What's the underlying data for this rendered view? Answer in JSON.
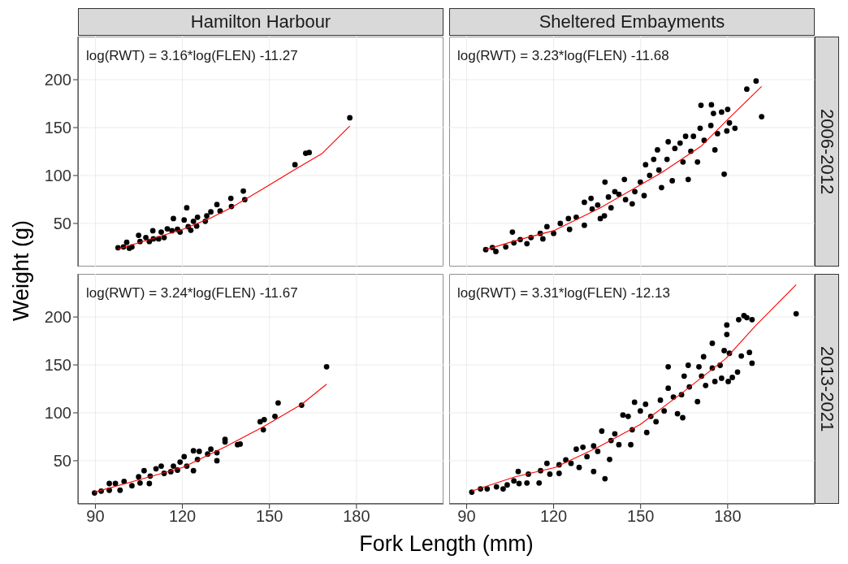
{
  "chart_data": [
    {
      "type": "scatter",
      "title": "Hamilton Harbour",
      "ylabel": "Weight (g)",
      "xlim": [
        84,
        210
      ],
      "ylim": [
        5,
        245
      ],
      "xticks": [
        90,
        120,
        150,
        180
      ],
      "yticks": [
        50,
        100,
        150,
        200
      ],
      "grid": true,
      "marker": "circle",
      "tick_labels": "y",
      "annotations": [
        "log(RWT) = 3.16*log(FLEN) -11.27"
      ],
      "series": [
        {
          "type": "scatter",
          "color": "#000000",
          "x": [
            97.8,
            99.7,
            100.8,
            101.7,
            102.6,
            104.9,
            105.4,
            107.4,
            108.6,
            109.8,
            110.0,
            111.8,
            112.7,
            113.7,
            114.8,
            116.4,
            116.9,
            118.3,
            119.2,
            120.6,
            121.5,
            122.0,
            122.9,
            123.8,
            124.9,
            125.2,
            127.9,
            128.4,
            129.8,
            131.9,
            133.0,
            136.7,
            136.9,
            141.0,
            141.5,
            158.8,
            162.5,
            163.7,
            177.7
          ],
          "values": [
            24.7,
            25.5,
            30.3,
            24.1,
            25.5,
            37.6,
            31.1,
            35.3,
            31.1,
            42.4,
            33.9,
            33.9,
            41.0,
            35.3,
            44.4,
            42.4,
            55.1,
            43.8,
            41.0,
            53.6,
            66.3,
            46.6,
            42.9,
            52.2,
            47.2,
            56.5,
            52.2,
            57.9,
            62.1,
            69.7,
            62.9,
            76.2,
            67.7,
            83.8,
            74.8,
            111.3,
            123.2,
            124.0,
            160.3
          ]
        },
        {
          "type": "line",
          "marker": "none",
          "color": "#ff0000",
          "x": [
            97.8,
            110.9,
            120.1,
            129.3,
            136.7,
            147.7,
            158.8,
            168.0,
            177.7
          ],
          "values": [
            23.2,
            35.3,
            43.8,
            55.1,
            66.3,
            86.0,
            106.3,
            122.6,
            151.6
          ]
        }
      ]
    },
    {
      "type": "scatter",
      "title": "Sheltered Embayments",
      "y2label": "2006-2012",
      "xlim": [
        84,
        210
      ],
      "ylim": [
        5,
        245
      ],
      "xticks": [
        90,
        120,
        150,
        180
      ],
      "yticks": [
        50,
        100,
        150,
        200
      ],
      "grid": true,
      "marker": "circle",
      "tick_labels": false,
      "annotations": [
        "log(RWT) = 3.23*log(FLEN) -11.68"
      ],
      "series": [
        {
          "type": "scatter",
          "color": "#000000",
          "x": [
            96.6,
            98.9,
            100.1,
            103.5,
            105.8,
            106.3,
            108.5,
            110.8,
            112.2,
            115.4,
            116.3,
            117.7,
            120.0,
            122.3,
            125.5,
            125.1,
            127.8,
            130.6,
            130.6,
            132.9,
            133.3,
            136.1,
            135.2,
            137.5,
            137.7,
            138.9,
            139.8,
            141.1,
            142.5,
            144.4,
            144.8,
            147.1,
            148.0,
            149.9,
            151.2,
            151.7,
            153.1,
            154.5,
            155.8,
            156.3,
            157.2,
            159.1,
            159.5,
            160.9,
            161.8,
            163.6,
            164.6,
            165.5,
            166.4,
            167.3,
            168.2,
            169.6,
            170.5,
            170.8,
            171.9,
            174.2,
            174.4,
            175.1,
            175.6,
            176.5,
            177.9,
            178.8,
            179.7,
            180.0,
            180.6,
            182.5,
            186.6,
            189.8,
            191.7
          ],
          "values": [
            22.7,
            24.9,
            20.7,
            25.5,
            41.0,
            29.7,
            33.1,
            28.9,
            35.3,
            39.6,
            33.9,
            46.6,
            39.6,
            50.0,
            43.8,
            55.1,
            56.5,
            48.1,
            72.1,
            76.2,
            65.1,
            55.1,
            69.1,
            57.9,
            93.1,
            77.6,
            66.3,
            83.2,
            80.4,
            95.9,
            74.8,
            70.5,
            83.2,
            93.1,
            79.0,
            111.3,
            100.1,
            116.9,
            126.8,
            105.7,
            87.4,
            116.9,
            135.2,
            94.5,
            128.2,
            133.8,
            114.1,
            140.9,
            95.9,
            125.4,
            140.9,
            114.1,
            149.3,
            173.3,
            136.7,
            152.2,
            173.8,
            164.8,
            126.8,
            143.7,
            166.2,
            101.4,
            146.5,
            169.0,
            154.9,
            149.3,
            190.1,
            198.6,
            161.4
          ]
        },
        {
          "type": "line",
          "marker": "none",
          "color": "#ff0000",
          "x": [
            96.6,
            108.1,
            120.0,
            136.1,
            157.2,
            171.0,
            180.2,
            191.7
          ],
          "values": [
            22.7,
            33.1,
            42.4,
            66.3,
            102.9,
            131.0,
            159.1,
            193.0
          ]
        }
      ]
    },
    {
      "type": "scatter",
      "xlabel": "Fork Length (mm)",
      "xlim": [
        84,
        210
      ],
      "ylim": [
        5,
        245
      ],
      "xticks": [
        90,
        120,
        150,
        180
      ],
      "yticks": [
        50,
        100,
        150,
        200
      ],
      "grid": true,
      "marker": "circle",
      "annotations": [
        "log(RWT) = 3.24*log(FLEN) -11.67"
      ],
      "series": [
        {
          "type": "scatter",
          "color": "#000000",
          "x": [
            89.7,
            92.0,
            94.8,
            94.8,
            96.9,
            98.5,
            99.9,
            102.6,
            104.9,
            105.4,
            106.8,
            108.6,
            108.9,
            110.9,
            113.7,
            112.7,
            116.0,
            116.9,
            118.3,
            119.2,
            120.6,
            121.5,
            123.8,
            123.8,
            125.2,
            125.8,
            128.7,
            129.8,
            131.9,
            131.9,
            134.7,
            134.7,
            139.0,
            139.9,
            146.8,
            148.2,
            147.9,
            151.9,
            153.0,
            161.1,
            169.7
          ],
          "values": [
            16.4,
            18.3,
            19.2,
            26.2,
            26.2,
            19.2,
            28.4,
            23.9,
            33.2,
            26.8,
            39.6,
            26.2,
            34.0,
            41.6,
            36.8,
            44.4,
            38.6,
            44.4,
            40.2,
            48.6,
            54.2,
            44.4,
            39.6,
            60.4,
            51.4,
            59.8,
            57.0,
            62.1,
            50.0,
            58.4,
            72.4,
            69.6,
            66.8,
            67.4,
            90.7,
            92.9,
            82.3,
            96.3,
            110.3,
            108.0,
            148.1
          ]
        },
        {
          "type": "line",
          "marker": "none",
          "color": "#ff0000",
          "x": [
            89.7,
            105.4,
            120.1,
            134.8,
            147.7,
            153.2,
            161.1,
            169.7
          ],
          "values": [
            17.2,
            30.4,
            43.0,
            64.6,
            85.1,
            94.9,
            108.9,
            129.9
          ]
        }
      ]
    },
    {
      "type": "scatter",
      "y2label": "2013-2021",
      "xlim": [
        84,
        210
      ],
      "ylim": [
        5,
        245
      ],
      "xticks": [
        90,
        120,
        150,
        180
      ],
      "yticks": [
        50,
        100,
        150,
        200
      ],
      "grid": true,
      "marker": "circle",
      "tick_labels": "x",
      "annotations": [
        "log(RWT) = 3.31*log(FLEN) -12.13"
      ],
      "series": [
        {
          "type": "scatter",
          "color": "#000000",
          "x": [
            91.8,
            94.8,
            97.1,
            100.3,
            102.6,
            104.0,
            106.3,
            107.8,
            108.1,
            110.8,
            111.3,
            115.0,
            115.5,
            117.7,
            118.7,
            121.9,
            121.9,
            124.2,
            126.0,
            128.8,
            127.8,
            130.1,
            131.5,
            133.8,
            133.8,
            135.2,
            136.6,
            137.7,
            139.3,
            139.8,
            141.1,
            142.5,
            143.9,
            145.7,
            146.6,
            147.1,
            147.9,
            149.9,
            151.7,
            152.1,
            153.5,
            155.3,
            156.8,
            158.1,
            159.5,
            159.5,
            161.3,
            162.7,
            164.1,
            164.5,
            165.0,
            166.4,
            166.8,
            169.6,
            170.1,
            171.0,
            171.7,
            172.4,
            174.7,
            174.7,
            175.6,
            177.4,
            177.9,
            178.8,
            179.7,
            179.7,
            180.2,
            180.6,
            181.6,
            183.4,
            183.8,
            184.7,
            185.6,
            186.6,
            187.5,
            188.4,
            188.4,
            203.6
          ],
          "values": [
            17.2,
            20.6,
            20.6,
            22.8,
            20.6,
            24.8,
            29.0,
            38.8,
            26.2,
            26.8,
            36.0,
            26.8,
            39.6,
            47.2,
            36.0,
            36.8,
            45.8,
            50.9,
            47.2,
            43.0,
            62.1,
            64.1,
            54.2,
            38.8,
            65.5,
            59.8,
            80.9,
            31.2,
            51.4,
            71.1,
            78.1,
            66.8,
            97.7,
            96.3,
            66.8,
            82.3,
            111.1,
            101.9,
            108.9,
            79.5,
            96.3,
            90.7,
            113.2,
            101.9,
            148.1,
            125.7,
            116.5,
            99.1,
            118.9,
            94.9,
            138.3,
            149.6,
            127.1,
            111.7,
            148.1,
            138.3,
            158.5,
            128.5,
            172.5,
            146.7,
            132.7,
            149.6,
            136.1,
            164.9,
            191.6,
            181.8,
            132.7,
            162.1,
            136.9,
            142.5,
            197.2,
            159.3,
            201.4,
            199.4,
            163.0,
            197.2,
            151.8,
            203.4
          ]
        },
        {
          "type": "line",
          "marker": "none",
          "color": "#ff0000",
          "x": [
            91.8,
            106.7,
            120.5,
            135.2,
            149.9,
            164.6,
            179.3,
            189.4,
            203.6
          ],
          "values": [
            18.3,
            33.2,
            43.0,
            64.0,
            87.9,
            121.5,
            156.5,
            190.2,
            233.6
          ]
        }
      ]
    }
  ]
}
